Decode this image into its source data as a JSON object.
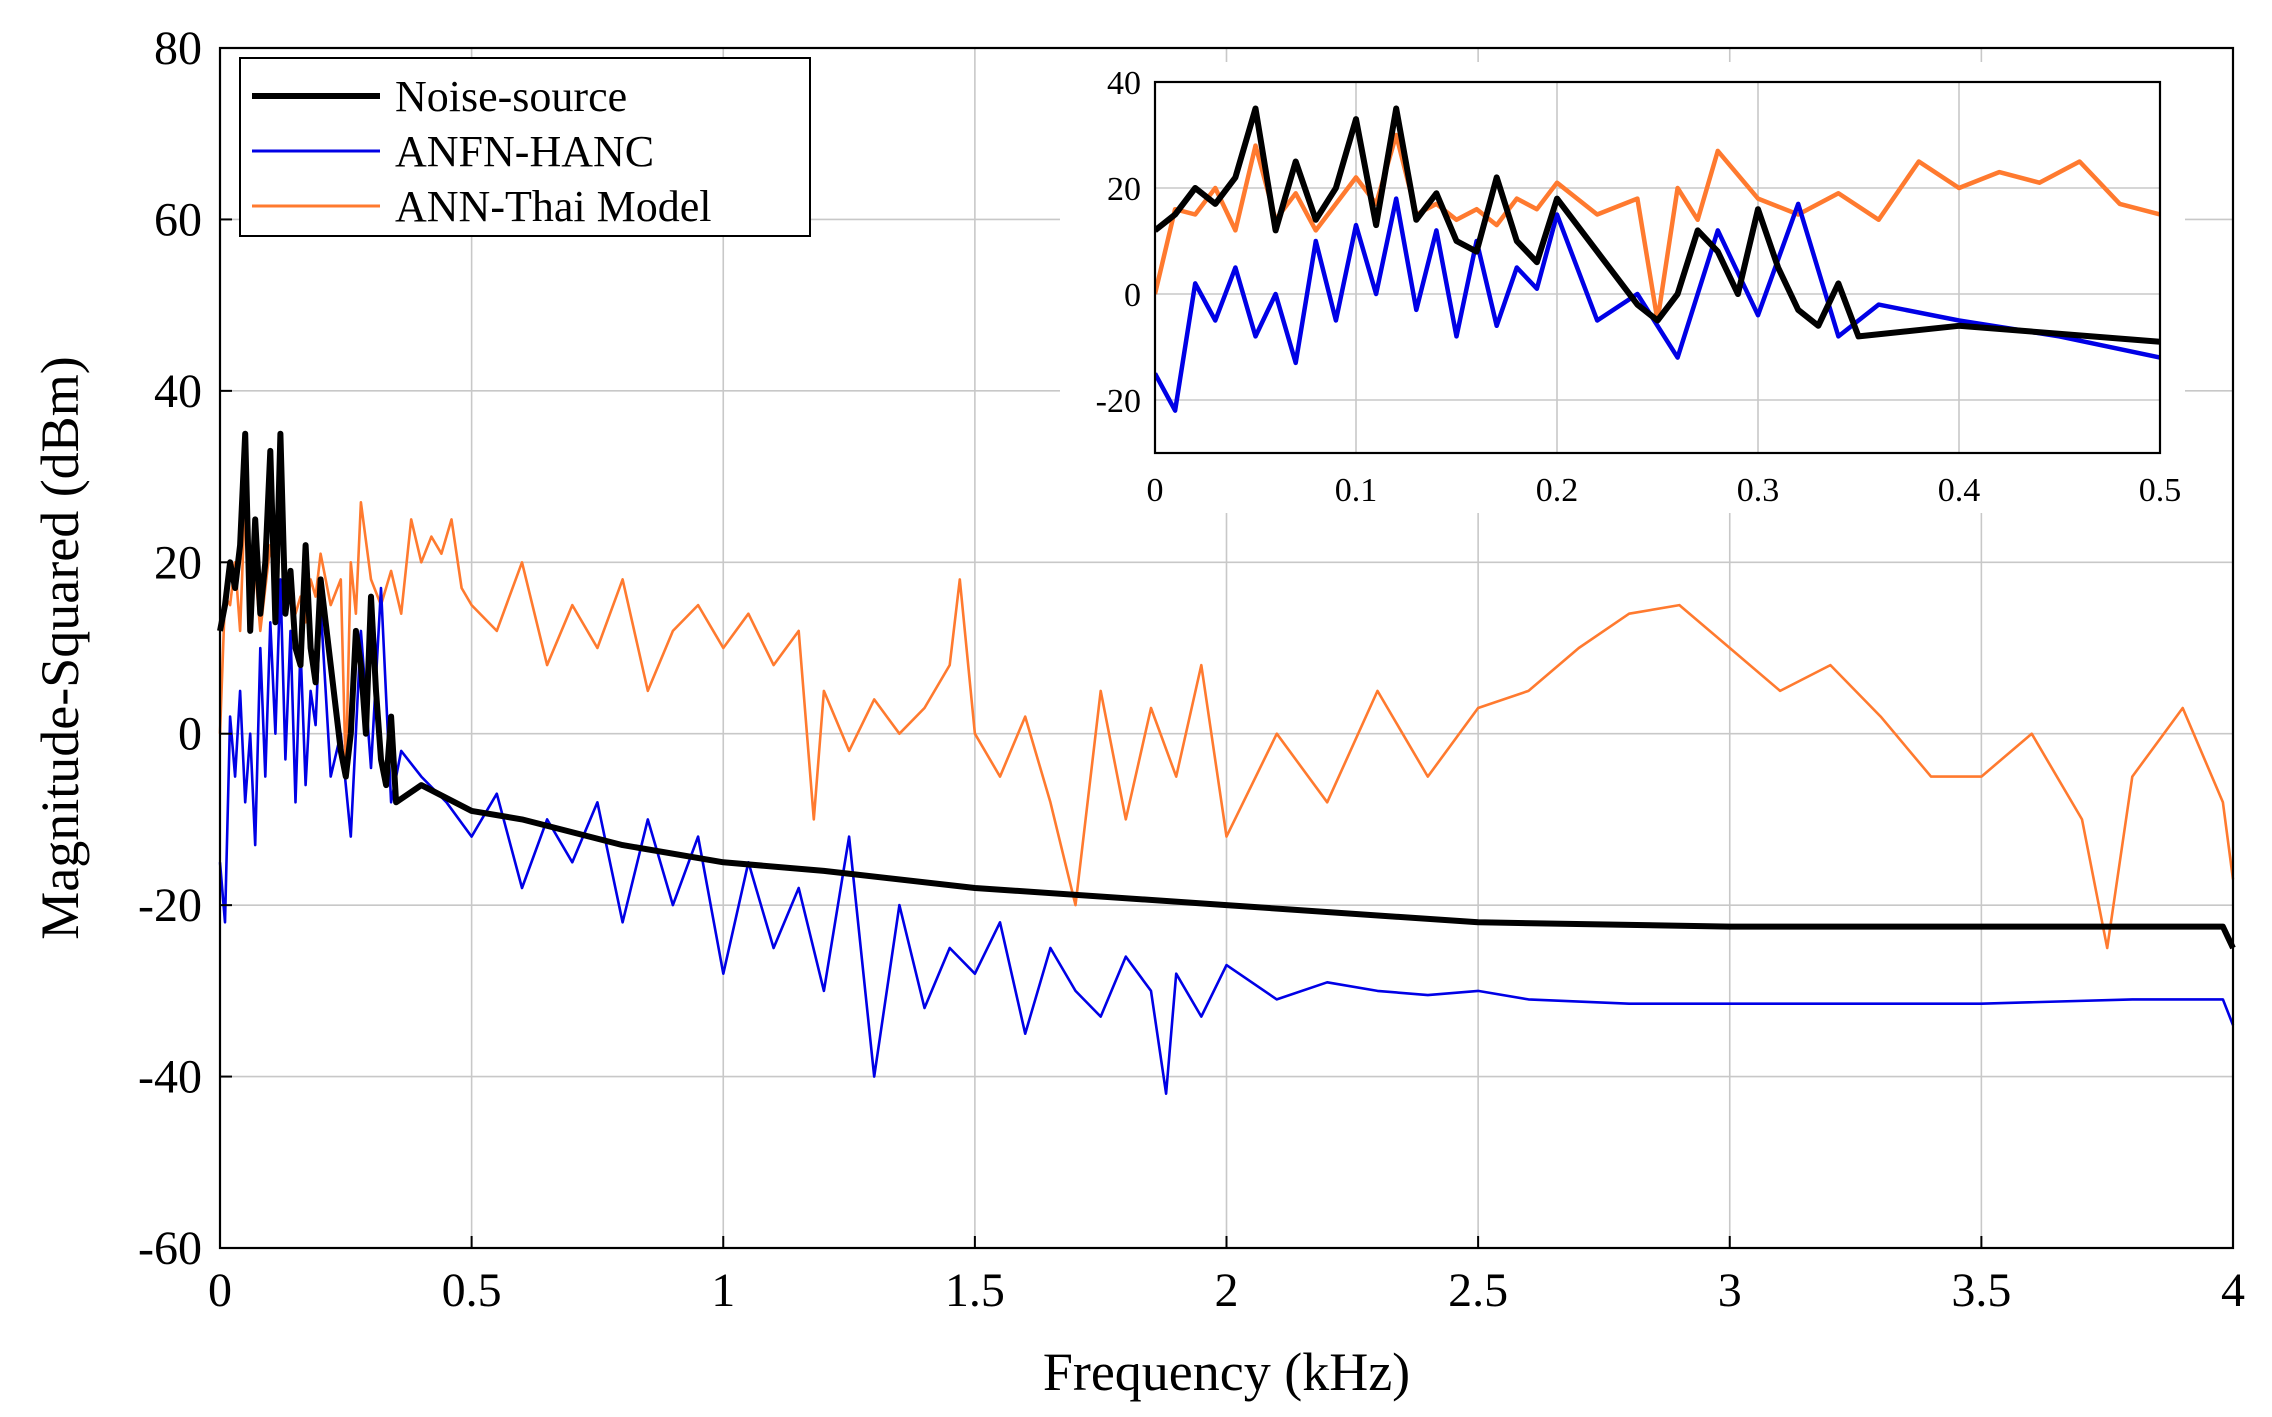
{
  "chart_data": {
    "type": "line",
    "title": "",
    "xlabel": "Frequency (kHz)",
    "ylabel": "Magnitude-Squared (dBm)",
    "xlim": [
      0,
      4
    ],
    "ylim": [
      -60,
      80
    ],
    "xticks": [
      0,
      0.5,
      1,
      1.5,
      2,
      2.5,
      3,
      3.5,
      4
    ],
    "yticks": [
      -60,
      -40,
      -20,
      0,
      20,
      40,
      60,
      80
    ],
    "grid": true,
    "legend_position": "top-left",
    "series": [
      {
        "name": "Noise-source",
        "color": "#000000",
        "width": "thick",
        "x": [
          0,
          0.01,
          0.02,
          0.03,
          0.04,
          0.05,
          0.06,
          0.07,
          0.08,
          0.09,
          0.1,
          0.11,
          0.12,
          0.13,
          0.14,
          0.15,
          0.16,
          0.17,
          0.18,
          0.19,
          0.2,
          0.22,
          0.24,
          0.25,
          0.26,
          0.27,
          0.28,
          0.29,
          0.3,
          0.31,
          0.32,
          0.33,
          0.34,
          0.35,
          0.4,
          0.5,
          0.6,
          0.8,
          1.0,
          1.2,
          1.5,
          2.0,
          2.5,
          3.0,
          3.5,
          3.98,
          4.0
        ],
        "values": [
          12,
          15,
          20,
          17,
          22,
          35,
          12,
          25,
          14,
          20,
          33,
          13,
          35,
          14,
          19,
          10,
          8,
          22,
          10,
          6,
          18,
          8,
          -2,
          -5,
          0,
          12,
          8,
          0,
          16,
          5,
          -3,
          -6,
          2,
          -8,
          -6,
          -9,
          -10,
          -13,
          -15,
          -16,
          -18,
          -20,
          -22,
          -22.5,
          -22.5,
          -22.5,
          -25
        ]
      },
      {
        "name": "ANFN-HANC",
        "color": "#0000e6",
        "width": "thin",
        "x": [
          0,
          0.01,
          0.02,
          0.03,
          0.04,
          0.05,
          0.06,
          0.07,
          0.08,
          0.09,
          0.1,
          0.11,
          0.12,
          0.13,
          0.14,
          0.15,
          0.16,
          0.17,
          0.18,
          0.19,
          0.2,
          0.22,
          0.24,
          0.26,
          0.28,
          0.3,
          0.32,
          0.34,
          0.36,
          0.4,
          0.45,
          0.5,
          0.55,
          0.6,
          0.65,
          0.7,
          0.75,
          0.8,
          0.85,
          0.9,
          0.95,
          1.0,
          1.05,
          1.1,
          1.15,
          1.2,
          1.25,
          1.3,
          1.35,
          1.4,
          1.45,
          1.5,
          1.55,
          1.6,
          1.65,
          1.7,
          1.75,
          1.8,
          1.85,
          1.88,
          1.9,
          1.95,
          2.0,
          2.1,
          2.2,
          2.3,
          2.4,
          2.5,
          2.6,
          2.8,
          3.0,
          3.2,
          3.5,
          3.8,
          3.98,
          4.0
        ],
        "values": [
          -15,
          -22,
          2,
          -5,
          5,
          -8,
          0,
          -13,
          10,
          -5,
          13,
          0,
          18,
          -3,
          12,
          -8,
          10,
          -6,
          5,
          1,
          15,
          -5,
          0,
          -12,
          12,
          -4,
          17,
          -8,
          -2,
          -5,
          -8,
          -12,
          -7,
          -18,
          -10,
          -15,
          -8,
          -22,
          -10,
          -20,
          -12,
          -28,
          -15,
          -25,
          -18,
          -30,
          -12,
          -40,
          -20,
          -32,
          -25,
          -28,
          -22,
          -35,
          -25,
          -30,
          -33,
          -26,
          -30,
          -42,
          -28,
          -33,
          -27,
          -31,
          -29,
          -30,
          -30.5,
          -30,
          -31,
          -31.5,
          -31.5,
          -31.5,
          -31.5,
          -31,
          -31,
          -34
        ]
      },
      {
        "name": "ANN-Thai Model",
        "color": "#ff7a2f",
        "width": "thin",
        "x": [
          0,
          0.01,
          0.02,
          0.03,
          0.04,
          0.05,
          0.06,
          0.07,
          0.08,
          0.09,
          0.1,
          0.11,
          0.12,
          0.13,
          0.14,
          0.15,
          0.16,
          0.17,
          0.18,
          0.19,
          0.2,
          0.22,
          0.24,
          0.25,
          0.26,
          0.27,
          0.28,
          0.3,
          0.32,
          0.34,
          0.36,
          0.38,
          0.4,
          0.42,
          0.44,
          0.46,
          0.48,
          0.5,
          0.55,
          0.6,
          0.65,
          0.7,
          0.75,
          0.8,
          0.85,
          0.9,
          0.95,
          1.0,
          1.05,
          1.1,
          1.15,
          1.18,
          1.2,
          1.25,
          1.3,
          1.35,
          1.4,
          1.45,
          1.47,
          1.5,
          1.55,
          1.6,
          1.65,
          1.7,
          1.75,
          1.8,
          1.85,
          1.9,
          1.95,
          2.0,
          2.1,
          2.2,
          2.3,
          2.4,
          2.5,
          2.6,
          2.7,
          2.8,
          2.9,
          3.0,
          3.1,
          3.2,
          3.3,
          3.4,
          3.5,
          3.6,
          3.7,
          3.75,
          3.8,
          3.9,
          3.98,
          4.0
        ],
        "values": [
          0,
          16,
          15,
          20,
          12,
          28,
          14,
          19,
          12,
          17,
          22,
          17,
          30,
          15,
          17,
          14,
          16,
          13,
          18,
          16,
          21,
          15,
          18,
          -5,
          20,
          14,
          27,
          18,
          15,
          19,
          14,
          25,
          20,
          23,
          21,
          25,
          17,
          15,
          12,
          20,
          8,
          15,
          10,
          18,
          5,
          12,
          15,
          10,
          14,
          8,
          12,
          -10,
          5,
          -2,
          4,
          0,
          3,
          8,
          18,
          0,
          -5,
          2,
          -8,
          -20,
          5,
          -10,
          3,
          -5,
          8,
          -12,
          0,
          -8,
          5,
          -5,
          3,
          5,
          10,
          14,
          15,
          10,
          5,
          8,
          2,
          -5,
          -5,
          0,
          -10,
          -25,
          -5,
          3,
          -8,
          -17
        ]
      }
    ],
    "inset": {
      "xlim": [
        0,
        0.5
      ],
      "ylim": [
        -30,
        40
      ],
      "xticks": [
        0,
        0.1,
        0.2,
        0.3,
        0.4,
        0.5
      ],
      "yticks": [
        -20,
        0,
        20,
        40
      ],
      "description_series": "zoom of the same three series from 0 to 0.5 kHz"
    }
  }
}
